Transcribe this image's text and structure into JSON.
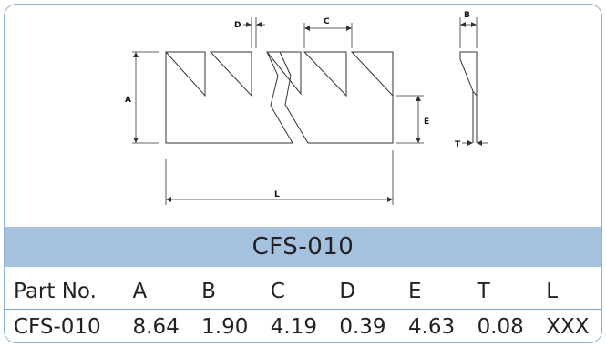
{
  "drawing": {
    "labels": {
      "A": "A",
      "B": "B",
      "C": "C",
      "D": "D",
      "E": "E",
      "T": "T",
      "L": "L"
    }
  },
  "title": "CFS-010",
  "table": {
    "headers": [
      "Part No.",
      "A",
      "B",
      "C",
      "D",
      "E",
      "T",
      "L"
    ],
    "rows": [
      [
        "CFS-010",
        "8.64",
        "1.90",
        "4.19",
        "0.39",
        "4.63",
        "0.08",
        "XXX"
      ]
    ]
  }
}
